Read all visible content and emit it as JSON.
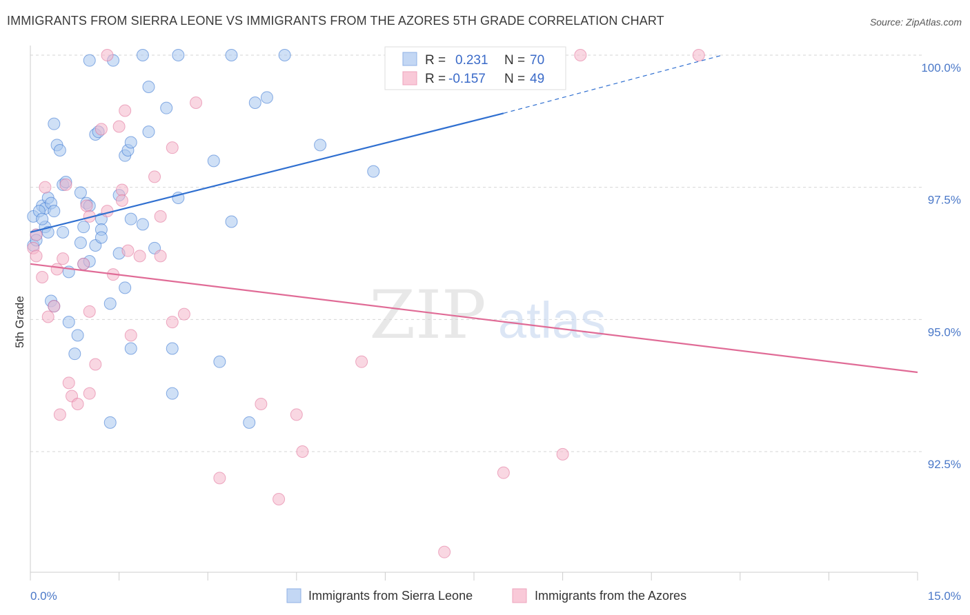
{
  "title": "IMMIGRANTS FROM SIERRA LEONE VS IMMIGRANTS FROM THE AZORES 5TH GRADE CORRELATION CHART",
  "source": "Source: ZipAtlas.com",
  "watermark": {
    "zip": "ZIP",
    "atlas": "atlas"
  },
  "stats": [
    {
      "r_label": "R =",
      "r_value": "0.231",
      "n_label": "N =",
      "n_value": "70"
    },
    {
      "r_label": "R =",
      "r_value": "-0.157",
      "n_label": "N =",
      "n_value": "49"
    }
  ],
  "chart_data": {
    "type": "scatter",
    "title": "IMMIGRANTS FROM SIERRA LEONE VS IMMIGRANTS FROM THE AZORES 5TH GRADE CORRELATION CHART",
    "xlabel": "",
    "ylabel": "5th Grade",
    "xlim": [
      0,
      15
    ],
    "ylim": [
      90.2,
      100.2
    ],
    "x_tick_labels": [
      "0.0%",
      "15.0%"
    ],
    "y_ticks": [
      100.0,
      97.5,
      95.0,
      92.5
    ],
    "y_tick_labels": [
      "100.0%",
      "97.5%",
      "95.0%",
      "92.5%"
    ],
    "grid": true,
    "legend_position": "bottom",
    "series": [
      {
        "name": "Immigrants from Sierra Leone",
        "color": "#a8c6ef",
        "line_color": "#2f6fd0",
        "trend": {
          "x0": 0,
          "y0": 96.65,
          "x1": 8.0,
          "y1": 98.9,
          "x_dash_end": 11.7,
          "y_dash_end": 100.0
        },
        "points": [
          [
            1.0,
            99.9
          ],
          [
            1.4,
            99.9
          ],
          [
            1.9,
            100.0
          ],
          [
            2.5,
            100.0
          ],
          [
            3.4,
            100.0
          ],
          [
            4.3,
            100.0
          ],
          [
            2.0,
            99.4
          ],
          [
            2.3,
            99.0
          ],
          [
            3.8,
            99.1
          ],
          [
            0.4,
            98.7
          ],
          [
            1.1,
            98.5
          ],
          [
            1.15,
            98.55
          ],
          [
            2.0,
            98.55
          ],
          [
            0.45,
            98.3
          ],
          [
            0.5,
            98.2
          ],
          [
            1.6,
            98.1
          ],
          [
            1.65,
            98.2
          ],
          [
            1.7,
            98.35
          ],
          [
            3.1,
            98.0
          ],
          [
            4.9,
            98.3
          ],
          [
            5.8,
            97.8
          ],
          [
            0.55,
            97.55
          ],
          [
            0.6,
            97.6
          ],
          [
            0.85,
            97.4
          ],
          [
            1.5,
            97.35
          ],
          [
            2.5,
            97.3
          ],
          [
            0.2,
            97.15
          ],
          [
            0.25,
            97.1
          ],
          [
            0.3,
            97.3
          ],
          [
            0.35,
            97.2
          ],
          [
            0.4,
            97.05
          ],
          [
            0.95,
            97.2
          ],
          [
            1.0,
            97.15
          ],
          [
            1.2,
            96.9
          ],
          [
            1.2,
            96.7
          ],
          [
            0.9,
            96.75
          ],
          [
            0.25,
            96.75
          ],
          [
            0.3,
            96.65
          ],
          [
            0.55,
            96.65
          ],
          [
            1.7,
            96.9
          ],
          [
            1.9,
            96.8
          ],
          [
            3.4,
            96.85
          ],
          [
            0.05,
            96.95
          ],
          [
            0.1,
            96.6
          ],
          [
            0.05,
            96.4
          ],
          [
            0.1,
            96.5
          ],
          [
            0.85,
            96.45
          ],
          [
            1.1,
            96.4
          ],
          [
            1.2,
            96.55
          ],
          [
            1.5,
            96.25
          ],
          [
            2.1,
            96.35
          ],
          [
            0.9,
            96.05
          ],
          [
            1.0,
            96.1
          ],
          [
            0.65,
            95.9
          ],
          [
            1.6,
            95.6
          ],
          [
            0.35,
            95.35
          ],
          [
            0.4,
            95.25
          ],
          [
            1.35,
            95.3
          ],
          [
            0.65,
            94.95
          ],
          [
            0.8,
            94.7
          ],
          [
            1.7,
            94.45
          ],
          [
            2.4,
            94.45
          ],
          [
            0.75,
            94.35
          ],
          [
            3.2,
            94.2
          ],
          [
            2.4,
            93.6
          ],
          [
            1.35,
            93.05
          ],
          [
            3.7,
            93.05
          ],
          [
            0.15,
            97.05
          ],
          [
            0.2,
            96.9
          ],
          [
            4.0,
            99.2
          ]
        ]
      },
      {
        "name": "Immigrants from the Azores",
        "color": "#f4b6ca",
        "line_color": "#e06b96",
        "trend": {
          "x0": 0,
          "y0": 96.05,
          "x1": 15,
          "y1": 94.0
        },
        "points": [
          [
            1.3,
            100.0
          ],
          [
            9.3,
            100.0
          ],
          [
            11.3,
            100.0
          ],
          [
            2.8,
            99.1
          ],
          [
            1.6,
            98.95
          ],
          [
            1.5,
            98.65
          ],
          [
            1.2,
            98.6
          ],
          [
            2.4,
            98.25
          ],
          [
            2.1,
            97.7
          ],
          [
            0.25,
            97.5
          ],
          [
            0.6,
            97.55
          ],
          [
            1.55,
            97.45
          ],
          [
            1.55,
            97.25
          ],
          [
            0.95,
            97.15
          ],
          [
            0.1,
            96.6
          ],
          [
            1.3,
            97.05
          ],
          [
            2.2,
            96.95
          ],
          [
            1.0,
            96.95
          ],
          [
            0.05,
            96.35
          ],
          [
            0.1,
            96.2
          ],
          [
            1.65,
            96.3
          ],
          [
            1.85,
            96.2
          ],
          [
            2.2,
            96.2
          ],
          [
            0.55,
            96.15
          ],
          [
            0.45,
            95.95
          ],
          [
            0.9,
            96.05
          ],
          [
            1.4,
            95.85
          ],
          [
            0.2,
            95.8
          ],
          [
            0.4,
            95.25
          ],
          [
            0.3,
            95.05
          ],
          [
            1.0,
            95.15
          ],
          [
            2.6,
            95.1
          ],
          [
            2.4,
            94.95
          ],
          [
            1.7,
            94.7
          ],
          [
            0.65,
            93.8
          ],
          [
            1.1,
            94.15
          ],
          [
            5.6,
            94.2
          ],
          [
            1.0,
            93.6
          ],
          [
            0.7,
            93.55
          ],
          [
            0.8,
            93.4
          ],
          [
            0.5,
            93.2
          ],
          [
            3.9,
            93.4
          ],
          [
            4.5,
            93.2
          ],
          [
            4.6,
            92.5
          ],
          [
            9.0,
            92.45
          ],
          [
            8.0,
            92.1
          ],
          [
            3.2,
            92.0
          ],
          [
            4.2,
            91.6
          ],
          [
            7.0,
            90.6
          ]
        ]
      }
    ]
  }
}
